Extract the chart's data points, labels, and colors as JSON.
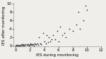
{
  "title": "",
  "xlabel": "IES during monitoring",
  "ylabel": "IES after monitoring",
  "xlim": [
    -0.3,
    12
  ],
  "ylim": [
    -0.3,
    10
  ],
  "xticks": [
    0,
    2,
    4,
    6,
    8,
    10,
    12
  ],
  "yticks": [
    0,
    2,
    4,
    6,
    8,
    10
  ],
  "points": [
    [
      0.0,
      0.0
    ],
    [
      0.1,
      0.1
    ],
    [
      0.2,
      0.0
    ],
    [
      0.3,
      0.1
    ],
    [
      0.4,
      0.0
    ],
    [
      0.5,
      0.0
    ],
    [
      0.6,
      0.1
    ],
    [
      0.7,
      0.0
    ],
    [
      0.8,
      0.1
    ],
    [
      0.9,
      0.2
    ],
    [
      1.0,
      0.0
    ],
    [
      1.0,
      0.2
    ],
    [
      1.1,
      0.1
    ],
    [
      1.2,
      0.0
    ],
    [
      1.3,
      0.2
    ],
    [
      1.4,
      0.1
    ],
    [
      1.5,
      0.3
    ],
    [
      1.6,
      0.1
    ],
    [
      1.7,
      0.2
    ],
    [
      1.8,
      0.0
    ],
    [
      1.9,
      0.1
    ],
    [
      2.0,
      0.3
    ],
    [
      2.0,
      0.5
    ],
    [
      2.1,
      0.2
    ],
    [
      2.2,
      0.1
    ],
    [
      2.3,
      0.3
    ],
    [
      2.4,
      0.2
    ],
    [
      2.5,
      0.0
    ],
    [
      2.6,
      0.4
    ],
    [
      2.7,
      0.2
    ],
    [
      2.8,
      0.3
    ],
    [
      3.0,
      0.5
    ],
    [
      3.1,
      0.1
    ],
    [
      3.2,
      2.0
    ],
    [
      3.4,
      0.5
    ],
    [
      3.5,
      0.3
    ],
    [
      3.8,
      3.0
    ],
    [
      4.0,
      1.0
    ],
    [
      4.2,
      0.5
    ],
    [
      4.3,
      2.5
    ],
    [
      4.5,
      0.8
    ],
    [
      4.6,
      2.0
    ],
    [
      4.8,
      1.0
    ],
    [
      5.0,
      1.5
    ],
    [
      5.2,
      2.5
    ],
    [
      5.5,
      1.5
    ],
    [
      5.8,
      3.5
    ],
    [
      6.0,
      1.0
    ],
    [
      6.2,
      4.5
    ],
    [
      6.5,
      2.5
    ],
    [
      6.8,
      3.0
    ],
    [
      7.0,
      2.0
    ],
    [
      7.5,
      4.0
    ],
    [
      8.0,
      3.5
    ],
    [
      8.5,
      5.0
    ],
    [
      8.8,
      8.0
    ],
    [
      9.0,
      4.0
    ],
    [
      9.5,
      6.0
    ],
    [
      9.8,
      9.5
    ],
    [
      10.0,
      8.5
    ]
  ],
  "marker_color": "#333333",
  "marker_size": 1.5,
  "bg_color": "#f0eeeb",
  "label_fontsize": 4.0,
  "tick_fontsize": 3.8
}
